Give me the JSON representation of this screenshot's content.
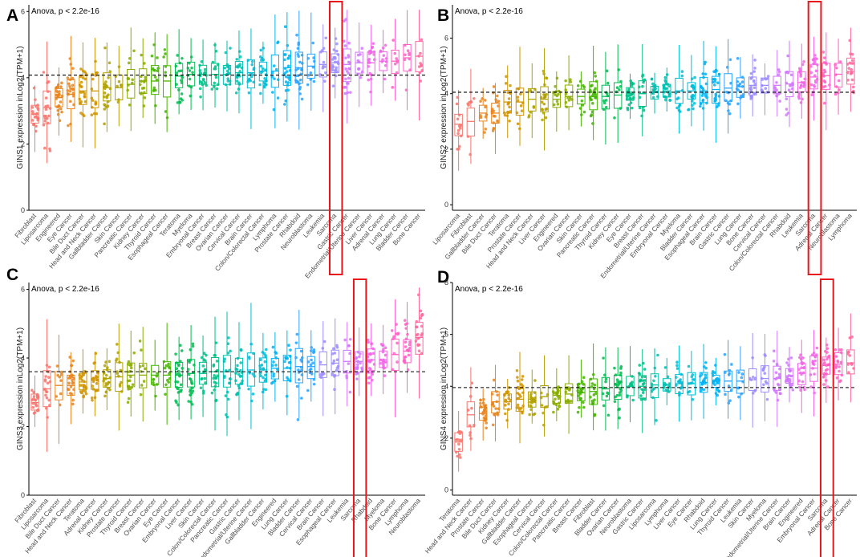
{
  "figure": {
    "stat_text": "Anova, p < 2.2e-16",
    "highlight_color": "#e8151b",
    "reference_line_style": "dashed black horizontal line at overall median"
  },
  "chart_data": [
    {
      "panel": "A",
      "type": "box",
      "title": "",
      "ylabel": "GINS1 expression inLog2(TPM+1)",
      "ylim": [
        0,
        6.2
      ],
      "yticks": [
        0,
        2,
        4,
        6
      ],
      "reference_line": 4.08,
      "highlight": "Sarcoma",
      "categories": [
        "Fibroblast",
        "Liposarcoma",
        "Engineered",
        "Eye Cancer",
        "Bile Duct Cancer",
        "Head and Neck Cancer",
        "Gallbladder Cancer",
        "Skin Cancer",
        "Pancreatic Cancer",
        "Kidney Cancer",
        "Thyroid Cancer",
        "Esophageal Cancer",
        "Teratoma",
        "Myeloma",
        "Embryonal Cancer",
        "Breast Cancer",
        "Ovarian Cancer",
        "Cervical Cancer",
        "Brain Cancer",
        "Colon/Colorectal Cancer",
        "Lymphoma",
        "Prostate Cancer",
        "Rhabdoid",
        "Neuroblastoma",
        "Leukemia",
        "Sarcoma",
        "Gastric Cancer",
        "Endometrial/Uterine Cancer",
        "Liver Cancer",
        "Adrenal Cancer",
        "Lung Cancer",
        "Bladder Cancer",
        "Bone Cancer"
      ],
      "values": [
        2.9,
        3.1,
        3.4,
        3.5,
        3.6,
        3.6,
        3.7,
        3.7,
        3.8,
        3.9,
        3.9,
        3.9,
        4.05,
        4.1,
        4.1,
        4.1,
        4.1,
        4.15,
        4.15,
        4.2,
        4.2,
        4.3,
        4.3,
        4.35,
        4.4,
        4.45,
        4.4,
        4.45,
        4.45,
        4.5,
        4.5,
        4.6,
        4.65
      ]
    },
    {
      "panel": "B",
      "type": "box",
      "title": "",
      "ylabel": "GINS2 expression inLog2(TPM+1)",
      "ylim": [
        -0.2,
        7.2
      ],
      "yticks": [
        0,
        2,
        4,
        6
      ],
      "reference_line": 4.05,
      "highlight": "Sarcoma",
      "categories": [
        "Liposarcoma",
        "Fibroblast",
        "Gallbladder Cancer",
        "Bile Duct Cancer",
        "Teratoma",
        "Prostate Cancer",
        "Head and Neck Cancer",
        "Liver Cancer",
        "Engineered",
        "Ovarian Cancer",
        "Skin Cancer",
        "Pancreatic Cancer",
        "Thyroid Cancer",
        "Kidney Cancer",
        "Eye Cancer",
        "Breast Cancer",
        "Endometrial/Uterine Cancer",
        "Embryonal Cancer",
        "Myeloma",
        "Bladder Cancer",
        "Esophageal Cancer",
        "Brain Cancer",
        "Gastric Cancer",
        "Lung Cancer",
        "Bone Cancer",
        "Cervical Cancer",
        "Colon/Colorectal Cancer",
        "Rhabdoid",
        "Leukemia",
        "Sarcoma",
        "Adrenal Cancer",
        "Neuroblastoma",
        "Lymphoma"
      ],
      "values": [
        2.9,
        3.0,
        3.3,
        3.3,
        3.7,
        3.7,
        3.8,
        3.8,
        3.8,
        3.9,
        3.9,
        3.9,
        3.9,
        3.95,
        4.0,
        4.0,
        4.05,
        4.1,
        4.1,
        4.1,
        4.1,
        4.15,
        4.2,
        4.25,
        4.3,
        4.3,
        4.3,
        4.35,
        4.4,
        4.6,
        4.65,
        4.7,
        4.8
      ]
    },
    {
      "panel": "C",
      "type": "box",
      "title": "",
      "ylabel": "GINS3 expression inLog2(TPM+1)",
      "ylim": [
        0,
        6.2
      ],
      "yticks": [
        0,
        2,
        4,
        6
      ],
      "reference_line": 3.6,
      "highlight": "Sarcoma",
      "categories": [
        "Fibroblast",
        "Liposarcoma",
        "Bile Duct Cancer",
        "Head and Neck Cancer",
        "Teratoma",
        "Adrenal Cancer",
        "Kidney Cancer",
        "Prostate Cancer",
        "Thyroid Cancer",
        "Breast Cancer",
        "Ovarian Cancer",
        "Eye Cancer",
        "Embryonal Cancer",
        "Liver Cancer",
        "Skin Cancer",
        "Colon/Colorectal Cancer",
        "Pancreatic Cancer",
        "Gastric Cancer",
        "Endometrial/Uterine Cancer",
        "Gallbladder Cancer",
        "Engineered",
        "Lung Cancer",
        "Bladder Cancer",
        "Cervical Cancer",
        "Brain Cancer",
        "Esophageal Cancer",
        "Leukemia",
        "Sarcoma",
        "Rhabdoid",
        "Myeloma",
        "Bone Cancer",
        "Lymphoma",
        "Neuroblastoma"
      ],
      "values": [
        2.7,
        3.1,
        3.2,
        3.2,
        3.3,
        3.35,
        3.4,
        3.45,
        3.5,
        3.5,
        3.5,
        3.5,
        3.5,
        3.55,
        3.55,
        3.6,
        3.6,
        3.6,
        3.65,
        3.65,
        3.7,
        3.7,
        3.75,
        3.75,
        3.8,
        3.85,
        3.9,
        3.9,
        3.95,
        3.95,
        4.1,
        4.2,
        4.6
      ]
    },
    {
      "panel": "D",
      "type": "box",
      "title": "",
      "ylabel": "GINS4 expression inLog2(TPM+1)",
      "ylim": [
        -0.2,
        8.0
      ],
      "yticks": [
        0,
        2,
        4,
        6,
        8
      ],
      "reference_line": 3.95,
      "highlight": "Sarcoma",
      "categories": [
        "Teratoma",
        "Head and Neck Cancer",
        "Prostate Cancer",
        "Bile Duct Cancer",
        "Kidney Cancer",
        "Gallbladder Cancer",
        "Esophageal Cancer",
        "Cervical Cancer",
        "Colon/Colorectal Cancer",
        "Pancreatic Cancer",
        "Breast Cancer",
        "Fibroblast",
        "Bladder Cancer",
        "Ovarian Cancer",
        "Neuroblastoma",
        "Gastric Cancer",
        "Liposarcoma",
        "Lymphoma",
        "Liver Cancer",
        "Eye Cancer",
        "Rhabdoid",
        "Lung Cancer",
        "Thyroid Cancer",
        "Leukemia",
        "Skin Cancer",
        "Myeloma",
        "Endometrial/Uterine Cancer",
        "Brain Cancer",
        "Engineered",
        "Embryonal Cancer",
        "Sarcoma",
        "Adrenal Cancer",
        "Bone Cancer"
      ],
      "values": [
        1.85,
        2.9,
        2.95,
        3.4,
        3.4,
        3.5,
        3.5,
        3.6,
        3.65,
        3.7,
        3.75,
        3.8,
        3.9,
        3.95,
        4.0,
        4.0,
        4.05,
        4.05,
        4.1,
        4.1,
        4.15,
        4.2,
        4.2,
        4.2,
        4.25,
        4.3,
        4.3,
        4.4,
        4.5,
        4.7,
        4.8,
        4.85,
        4.9
      ]
    }
  ]
}
